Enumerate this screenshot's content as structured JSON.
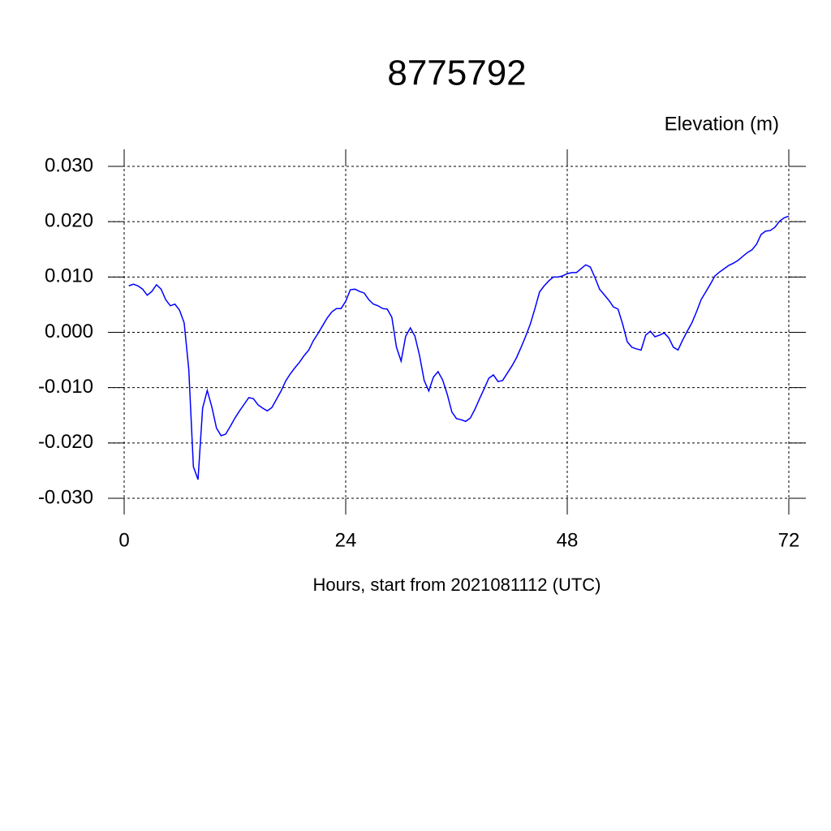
{
  "chart_data": {
    "type": "line",
    "title": "8775792",
    "y_label": "Elevation (m)",
    "x_label": "Hours, start from 2021081112 (UTC)",
    "xlim": [
      0,
      72
    ],
    "xticks": [
      0,
      24,
      48,
      72
    ],
    "ylim": [
      -0.03,
      0.03
    ],
    "yticks": [
      {
        "value": -0.03,
        "label": "-0.030"
      },
      {
        "value": -0.02,
        "label": "-0.020"
      },
      {
        "value": -0.01,
        "label": "-0.010"
      },
      {
        "value": 0,
        "label": "0.000"
      },
      {
        "value": 0.01,
        "label": "0.010"
      },
      {
        "value": 0.02,
        "label": "0.020"
      },
      {
        "value": 0.03,
        "label": "0.030"
      }
    ],
    "grid": true,
    "x": [
      0.5,
      1,
      1.5,
      2,
      2.5,
      3,
      3.5,
      4,
      4.5,
      5,
      5.5,
      6,
      6.5,
      7,
      7.5,
      8,
      8.5,
      9,
      9.5,
      10,
      10.5,
      11,
      11.5,
      12,
      12.5,
      13,
      13.5,
      14,
      14.5,
      15,
      15.5,
      16,
      16.5,
      17,
      17.5,
      18,
      18.5,
      19,
      19.5,
      20,
      20.5,
      21,
      21.5,
      22,
      22.5,
      23,
      23.5,
      24,
      24.5,
      25,
      25.5,
      26,
      26.5,
      27,
      27.5,
      28,
      28.5,
      29,
      29.5,
      30,
      30.5,
      31,
      31.5,
      32,
      32.5,
      33,
      33.5,
      34,
      34.5,
      35,
      35.5,
      36,
      36.5,
      37,
      37.5,
      38,
      38.5,
      39,
      39.5,
      40,
      40.5,
      41,
      41.5,
      42,
      42.5,
      43,
      43.5,
      44,
      44.5,
      45,
      45.5,
      46,
      46.5,
      47,
      47.5,
      48,
      48.5,
      49,
      49.5,
      50,
      50.5,
      51,
      51.5,
      52,
      52.5,
      53,
      53.5,
      54,
      54.5,
      55,
      55.5,
      56,
      56.5,
      57,
      57.5,
      58,
      58.5,
      59,
      59.5,
      60,
      60.5,
      61,
      61.5,
      62,
      62.5,
      63,
      63.5,
      64,
      64.5,
      65,
      65.5,
      66,
      66.5,
      67,
      67.5,
      68,
      68.5,
      69,
      69.5,
      70,
      70.5,
      71,
      71.5,
      72
    ],
    "series": [
      {
        "name": "Elevation",
        "color": "#0000ff",
        "values": [
          0.0084,
          0.0087,
          0.0084,
          0.0078,
          0.0067,
          0.0074,
          0.0086,
          0.0078,
          0.0059,
          0.0048,
          0.0051,
          0.004,
          0.0017,
          -0.0067,
          -0.0243,
          -0.0266,
          -0.0137,
          -0.0105,
          -0.0135,
          -0.0173,
          -0.0187,
          -0.0184,
          -0.017,
          -0.0155,
          -0.0142,
          -0.013,
          -0.0118,
          -0.012,
          -0.0131,
          -0.0137,
          -0.0142,
          -0.0136,
          -0.0121,
          -0.0106,
          -0.0088,
          -0.0075,
          -0.0064,
          -0.0054,
          -0.0042,
          -0.0032,
          -0.0015,
          -0.0002,
          0.0012,
          0.0026,
          0.0037,
          0.0043,
          0.0043,
          0.0056,
          0.0077,
          0.0078,
          0.0074,
          0.0071,
          0.0059,
          0.0051,
          0.0048,
          0.0043,
          0.0042,
          0.0027,
          -0.0027,
          -0.0052,
          -0.0007,
          0.0008,
          -0.0007,
          -0.0042,
          -0.0087,
          -0.0106,
          -0.0081,
          -0.0071,
          -0.0086,
          -0.0112,
          -0.0144,
          -0.0156,
          -0.0158,
          -0.0161,
          -0.0155,
          -0.0139,
          -0.012,
          -0.0102,
          -0.0083,
          -0.0077,
          -0.0089,
          -0.0087,
          -0.0074,
          -0.0061,
          -0.0046,
          -0.0027,
          -0.0007,
          0.0015,
          0.0043,
          0.0073,
          0.0084,
          0.0093,
          0.01,
          0.01,
          0.0102,
          0.0106,
          0.0108,
          0.0108,
          0.0115,
          0.0122,
          0.0118,
          0.0099,
          0.0078,
          0.0068,
          0.0058,
          0.0046,
          0.0042,
          0.0015,
          -0.0017,
          -0.0027,
          -0.003,
          -0.0032,
          -0.0005,
          0.0002,
          -0.0008,
          -0.0005,
          -0.0001,
          -0.001,
          -0.0027,
          -0.0032,
          -0.0014,
          0.0002,
          0.0017,
          0.0037,
          0.0059,
          0.0073,
          0.0087,
          0.0102,
          0.0109,
          0.0115,
          0.0121,
          0.0125,
          0.013,
          0.0137,
          0.0144,
          0.0149,
          0.0159,
          0.0177,
          0.0183,
          0.0184,
          0.019,
          0.0201,
          0.0207,
          0.021
        ]
      }
    ]
  }
}
